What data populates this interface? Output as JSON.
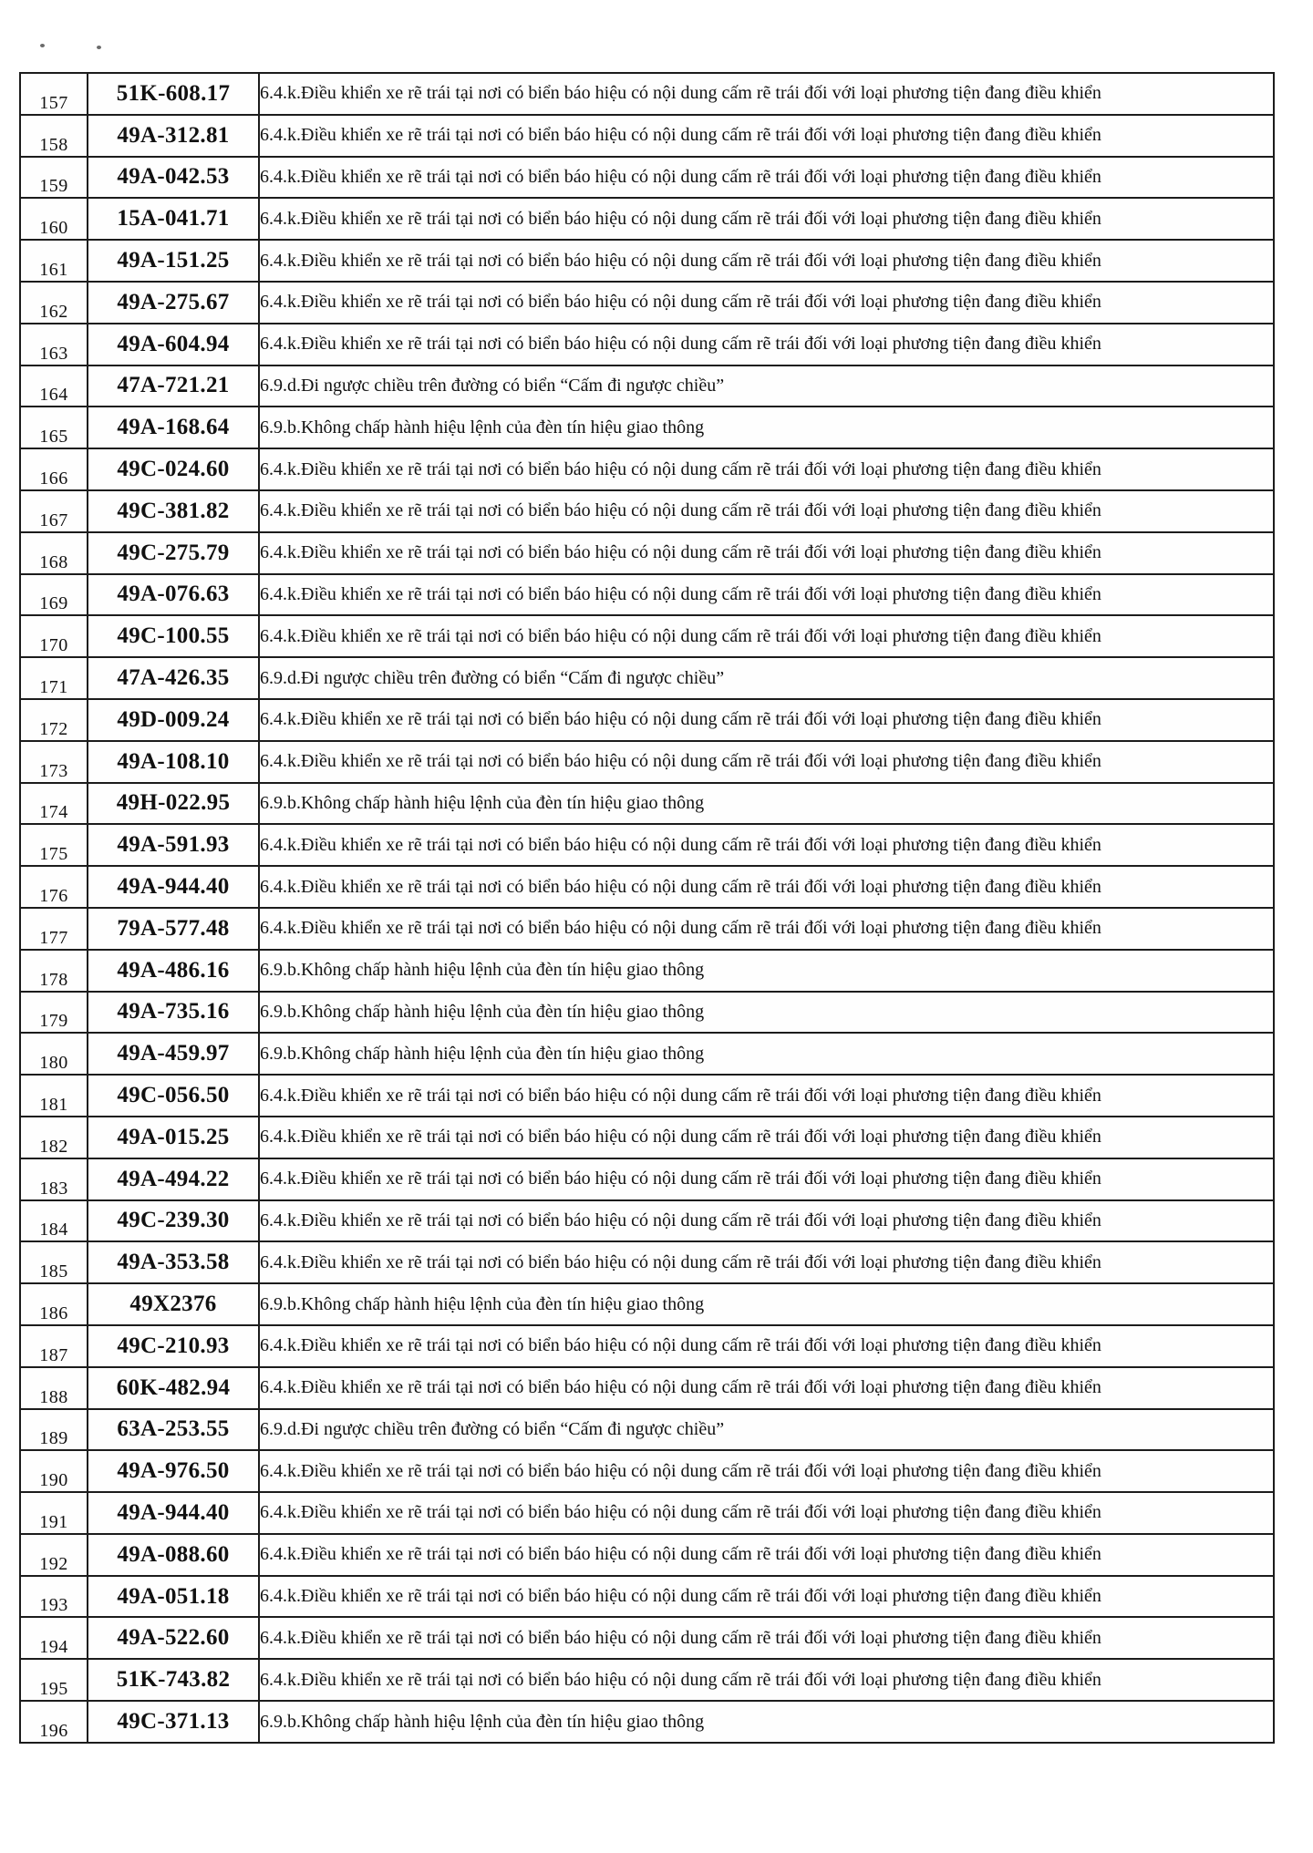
{
  "document": {
    "kind": "scanned-violation-list-page",
    "text_color": "#111111",
    "paper_color": "#ffffff",
    "columns": [
      "no",
      "plate",
      "violation"
    ]
  },
  "violations": {
    "turn_left": "6.4.k.Điều khiển xe rẽ trái tại nơi có biển báo hiệu có nội dung cấm rẽ trái đối với loại phương tiện đang điều khiển",
    "wrong_way": "6.9.d.Đi ngược chiều trên đường có biển “Cấm đi ngược chiều”",
    "red_light": "6.9.b.Không chấp hành hiệu lệnh của đèn tín hiệu giao thông"
  },
  "table": {
    "rows": [
      {
        "no": "157",
        "plate": "51K-608.17",
        "violation": "6.4.k.Điều khiển xe rẽ trái tại nơi có biển báo hiệu có nội dung cấm rẽ trái đối với loại phương tiện đang điều khiển"
      },
      {
        "no": "158",
        "plate": "49A-312.81",
        "violation": "6.4.k.Điều khiển xe rẽ trái tại nơi có biển báo hiệu có nội dung cấm rẽ trái đối với loại phương tiện đang điều khiển"
      },
      {
        "no": "159",
        "plate": "49A-042.53",
        "violation": "6.4.k.Điều khiển xe rẽ trái tại nơi có biển báo hiệu có nội dung cấm rẽ trái đối với loại phương tiện đang điều khiển"
      },
      {
        "no": "160",
        "plate": "15A-041.71",
        "violation": "6.4.k.Điều khiển xe rẽ trái tại nơi có biển báo hiệu có nội dung cấm rẽ trái đối với loại phương tiện đang điều khiển"
      },
      {
        "no": "161",
        "plate": "49A-151.25",
        "violation": "6.4.k.Điều khiển xe rẽ trái tại nơi có biển báo hiệu có nội dung cấm rẽ trái đối với loại phương tiện đang điều khiển"
      },
      {
        "no": "162",
        "plate": "49A-275.67",
        "violation": "6.4.k.Điều khiển xe rẽ trái tại nơi có biển báo hiệu có nội dung cấm rẽ trái đối với loại phương tiện đang điều khiển"
      },
      {
        "no": "163",
        "plate": "49A-604.94",
        "violation": "6.4.k.Điều khiển xe rẽ trái tại nơi có biển báo hiệu có nội dung cấm rẽ trái đối với loại phương tiện đang điều khiển"
      },
      {
        "no": "164",
        "plate": "47A-721.21",
        "violation": "6.9.d.Đi ngược chiều trên đường có biển “Cấm đi ngược chiều”"
      },
      {
        "no": "165",
        "plate": "49A-168.64",
        "violation": "6.9.b.Không chấp hành hiệu lệnh của đèn tín hiệu giao thông"
      },
      {
        "no": "166",
        "plate": "49C-024.60",
        "violation": "6.4.k.Điều khiển xe rẽ trái tại nơi có biển báo hiệu có nội dung cấm rẽ trái đối với loại phương tiện đang điều khiển"
      },
      {
        "no": "167",
        "plate": "49C-381.82",
        "violation": "6.4.k.Điều khiển xe rẽ trái tại nơi có biển báo hiệu có nội dung cấm rẽ trái đối với loại phương tiện đang điều khiển"
      },
      {
        "no": "168",
        "plate": "49C-275.79",
        "violation": "6.4.k.Điều khiển xe rẽ trái tại nơi có biển báo hiệu có nội dung cấm rẽ trái đối với loại phương tiện đang điều khiển"
      },
      {
        "no": "169",
        "plate": "49A-076.63",
        "violation": "6.4.k.Điều khiển xe rẽ trái tại nơi có biển báo hiệu có nội dung cấm rẽ trái đối với loại phương tiện đang điều khiển"
      },
      {
        "no": "170",
        "plate": "49C-100.55",
        "violation": "6.4.k.Điều khiển xe rẽ trái tại nơi có biển báo hiệu có nội dung cấm rẽ trái đối với loại phương tiện đang điều khiển"
      },
      {
        "no": "171",
        "plate": "47A-426.35",
        "violation": "6.9.d.Đi ngược chiều trên đường có biển “Cấm đi ngược chiều”"
      },
      {
        "no": "172",
        "plate": "49D-009.24",
        "violation": "6.4.k.Điều khiển xe rẽ trái tại nơi có biển báo hiệu có nội dung cấm rẽ trái đối với loại phương tiện đang điều khiển"
      },
      {
        "no": "173",
        "plate": "49A-108.10",
        "violation": "6.4.k.Điều khiển xe rẽ trái tại nơi có biển báo hiệu có nội dung cấm rẽ trái đối với loại phương tiện đang điều khiển"
      },
      {
        "no": "174",
        "plate": "49H-022.95",
        "violation": "6.9.b.Không chấp hành hiệu lệnh của đèn tín hiệu giao thông"
      },
      {
        "no": "175",
        "plate": "49A-591.93",
        "violation": "6.4.k.Điều khiển xe rẽ trái tại nơi có biển báo hiệu có nội dung cấm rẽ trái đối với loại phương tiện đang điều khiển"
      },
      {
        "no": "176",
        "plate": "49A-944.40",
        "violation": "6.4.k.Điều khiển xe rẽ trái tại nơi có biển báo hiệu có nội dung cấm rẽ trái đối với loại phương tiện đang điều khiển"
      },
      {
        "no": "177",
        "plate": "79A-577.48",
        "violation": "6.4.k.Điều khiển xe rẽ trái tại nơi có biển báo hiệu có nội dung cấm rẽ trái đối với loại phương tiện đang điều khiển"
      },
      {
        "no": "178",
        "plate": "49A-486.16",
        "violation": "6.9.b.Không chấp hành hiệu lệnh của đèn tín hiệu giao thông"
      },
      {
        "no": "179",
        "plate": "49A-735.16",
        "violation": "6.9.b.Không chấp hành hiệu lệnh của đèn tín hiệu giao thông"
      },
      {
        "no": "180",
        "plate": "49A-459.97",
        "violation": "6.9.b.Không chấp hành hiệu lệnh của đèn tín hiệu giao thông"
      },
      {
        "no": "181",
        "plate": "49C-056.50",
        "violation": "6.4.k.Điều khiển xe rẽ trái tại nơi có biển báo hiệu có nội dung cấm rẽ trái đối với loại phương tiện đang điều khiển"
      },
      {
        "no": "182",
        "plate": "49A-015.25",
        "violation": "6.4.k.Điều khiển xe rẽ trái tại nơi có biển báo hiệu có nội dung cấm rẽ trái đối với loại phương tiện đang điều khiển"
      },
      {
        "no": "183",
        "plate": "49A-494.22",
        "violation": "6.4.k.Điều khiển xe rẽ trái tại nơi có biển báo hiệu có nội dung cấm rẽ trái đối với loại phương tiện đang điều khiển"
      },
      {
        "no": "184",
        "plate": "49C-239.30",
        "violation": "6.4.k.Điều khiển xe rẽ trái tại nơi có biển báo hiệu có nội dung cấm rẽ trái đối với loại phương tiện đang điều khiển"
      },
      {
        "no": "185",
        "plate": "49A-353.58",
        "violation": "6.4.k.Điều khiển xe rẽ trái tại nơi có biển báo hiệu có nội dung cấm rẽ trái đối với loại phương tiện đang điều khiển"
      },
      {
        "no": "186",
        "plate": "49X2376",
        "violation": "6.9.b.Không chấp hành hiệu lệnh của đèn tín hiệu giao thông"
      },
      {
        "no": "187",
        "plate": "49C-210.93",
        "violation": "6.4.k.Điều khiển xe rẽ trái tại nơi có biển báo hiệu có nội dung cấm rẽ trái đối với loại phương tiện đang điều khiển"
      },
      {
        "no": "188",
        "plate": "60K-482.94",
        "violation": "6.4.k.Điều khiển xe rẽ trái tại nơi có biển báo hiệu có nội dung cấm rẽ trái đối với loại phương tiện đang điều khiển"
      },
      {
        "no": "189",
        "plate": "63A-253.55",
        "violation": "6.9.d.Đi ngược chiều trên đường có biển “Cấm đi ngược chiều”"
      },
      {
        "no": "190",
        "plate": "49A-976.50",
        "violation": "6.4.k.Điều khiển xe rẽ trái tại nơi có biển báo hiệu có nội dung cấm rẽ trái đối với loại phương tiện đang điều khiển"
      },
      {
        "no": "191",
        "plate": "49A-944.40",
        "violation": "6.4.k.Điều khiển xe rẽ trái tại nơi có biển báo hiệu có nội dung cấm rẽ trái đối với loại phương tiện đang điều khiển"
      },
      {
        "no": "192",
        "plate": "49A-088.60",
        "violation": "6.4.k.Điều khiển xe rẽ trái tại nơi có biển báo hiệu có nội dung cấm rẽ trái đối với loại phương tiện đang điều khiển"
      },
      {
        "no": "193",
        "plate": "49A-051.18",
        "violation": "6.4.k.Điều khiển xe rẽ trái tại nơi có biển báo hiệu có nội dung cấm rẽ trái đối với loại phương tiện đang điều khiển"
      },
      {
        "no": "194",
        "plate": "49A-522.60",
        "violation": "6.4.k.Điều khiển xe rẽ trái tại nơi có biển báo hiệu có nội dung cấm rẽ trái đối với loại phương tiện đang điều khiển"
      },
      {
        "no": "195",
        "plate": "51K-743.82",
        "violation": "6.4.k.Điều khiển xe rẽ trái tại nơi có biển báo hiệu có nội dung cấm rẽ trái đối với loại phương tiện đang điều khiển"
      },
      {
        "no": "196",
        "plate": "49C-371.13",
        "violation": "6.9.b.Không chấp hành hiệu lệnh của đèn tín hiệu giao thông"
      }
    ]
  }
}
